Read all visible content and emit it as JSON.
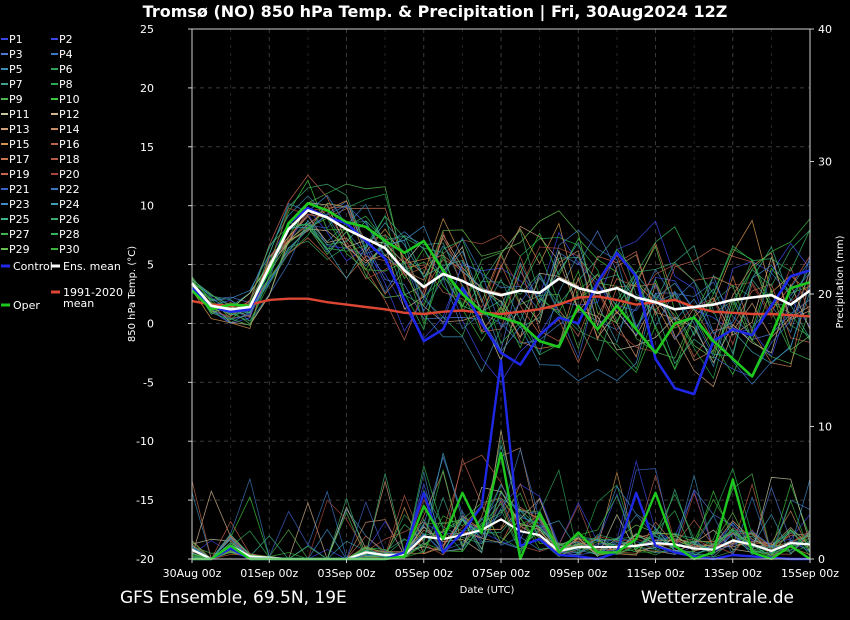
{
  "chart_data": {
    "type": "line",
    "title": "Tromsø  (NO)  850 hPa Temp. & Precipitation | Fri, 30Aug2024 12Z",
    "ylabel": "850 hPa Temp. (°C)",
    "y2label": "Precipitation (mm)",
    "xlabel": "Date (UTC)",
    "ylim": [
      -20,
      25
    ],
    "y2lim": [
      0,
      40
    ],
    "xlim": [
      0,
      16
    ],
    "x_unit": "days since 30Aug 00z",
    "x_ticks": [
      {
        "x": 0,
        "label": "30Aug 00z"
      },
      {
        "x": 2,
        "label": "01Sep 00z"
      },
      {
        "x": 4,
        "label": "03Sep 00z"
      },
      {
        "x": 6,
        "label": "05Sep 00z"
      },
      {
        "x": 8,
        "label": "07Sep 00z"
      },
      {
        "x": 10,
        "label": "09Sep 00z"
      },
      {
        "x": 12,
        "label": "11Sep 00z"
      },
      {
        "x": 14,
        "label": "13Sep 00z"
      },
      {
        "x": 16,
        "label": "15Sep 00z"
      }
    ],
    "y_ticks": [
      25,
      20,
      15,
      10,
      5,
      0,
      -5,
      -10,
      -15,
      -20
    ],
    "y2_ticks": [
      40,
      30,
      20,
      10,
      0
    ],
    "grid": true,
    "legend_position": "left",
    "legend": [
      {
        "label": "P1",
        "color": "#3c46e6"
      },
      {
        "label": "P2",
        "color": "#3c46e6"
      },
      {
        "label": "P3",
        "color": "#5078d2"
      },
      {
        "label": "P4",
        "color": "#3c78c8"
      },
      {
        "label": "P5",
        "color": "#3c8cb4"
      },
      {
        "label": "P6",
        "color": "#32a05a"
      },
      {
        "label": "P7",
        "color": "#3ca08c"
      },
      {
        "label": "P8",
        "color": "#28aa50"
      },
      {
        "label": "P9",
        "color": "#50b450"
      },
      {
        "label": "P10",
        "color": "#3cc83c"
      },
      {
        "label": "P11",
        "color": "#c8c8a0"
      },
      {
        "label": "P12",
        "color": "#d2b48c"
      },
      {
        "label": "P13",
        "color": "#d2a078"
      },
      {
        "label": "P14",
        "color": "#c88c64"
      },
      {
        "label": "P15",
        "color": "#d29650"
      },
      {
        "label": "P16",
        "color": "#be6446"
      },
      {
        "label": "P17",
        "color": "#c87850"
      },
      {
        "label": "P18",
        "color": "#b45a46"
      },
      {
        "label": "P19",
        "color": "#c86450"
      },
      {
        "label": "P20",
        "color": "#aa463c"
      },
      {
        "label": "P21",
        "color": "#3c64c8"
      },
      {
        "label": "P22",
        "color": "#3c78be"
      },
      {
        "label": "P23",
        "color": "#3c8cc8"
      },
      {
        "label": "P24",
        "color": "#3ca0b4"
      },
      {
        "label": "P25",
        "color": "#3cb48c"
      },
      {
        "label": "P26",
        "color": "#3caa6e"
      },
      {
        "label": "P27",
        "color": "#3cb450"
      },
      {
        "label": "P28",
        "color": "#32b45a"
      },
      {
        "label": "P29",
        "color": "#64be50"
      },
      {
        "label": "P30",
        "color": "#3cb43c"
      },
      {
        "label": "Control",
        "color": "#1e28e6"
      },
      {
        "label": "Ens. mean",
        "color": "#ffffff"
      },
      {
        "label": "1991-2020 mean",
        "color": "#dc4632"
      },
      {
        "label": "Oper",
        "color": "#1ec81e"
      }
    ],
    "series": [
      {
        "name": "Ens. mean",
        "axis": "temp",
        "color": "#ffffff",
        "x": [
          0,
          0.5,
          1,
          1.5,
          2,
          2.5,
          3,
          3.5,
          4,
          4.5,
          5,
          5.5,
          6,
          6.5,
          7,
          7.5,
          8,
          8.5,
          9,
          9.5,
          10,
          10.5,
          11,
          11.5,
          12,
          12.5,
          13,
          13.5,
          14,
          14.5,
          15,
          15.5,
          16
        ],
        "y": [
          3.4,
          1.5,
          1.2,
          1.4,
          4.8,
          8.0,
          9.6,
          9.0,
          8.0,
          7.2,
          6.4,
          4.5,
          3.1,
          4.2,
          3.6,
          2.8,
          2.4,
          2.8,
          2.6,
          3.8,
          3.0,
          2.6,
          3.0,
          2.2,
          1.8,
          1.2,
          1.4,
          1.6,
          2.0,
          2.2,
          2.4,
          1.6,
          2.8
        ]
      },
      {
        "name": "1991-2020 mean",
        "axis": "temp",
        "color": "#dc4632",
        "x": [
          0,
          0.5,
          1,
          1.5,
          2,
          2.5,
          3,
          3.5,
          4,
          4.5,
          5,
          5.5,
          6,
          6.5,
          7,
          7.5,
          8,
          8.5,
          9,
          9.5,
          10,
          10.5,
          11,
          11.5,
          12,
          12.5,
          13,
          13.5,
          14,
          14.5,
          15,
          15.5,
          16
        ],
        "y": [
          1.9,
          1.6,
          1.5,
          1.6,
          2.0,
          2.1,
          2.1,
          1.8,
          1.6,
          1.4,
          1.2,
          0.9,
          0.8,
          1.0,
          1.1,
          0.9,
          0.8,
          1.0,
          1.2,
          1.6,
          2.2,
          2.3,
          2.0,
          1.6,
          1.8,
          2.0,
          1.4,
          1.0,
          0.9,
          0.8,
          0.8,
          0.7,
          0.6
        ]
      },
      {
        "name": "Control",
        "axis": "temp",
        "color": "#1e28e6",
        "x": [
          0,
          0.5,
          1,
          1.5,
          2,
          2.5,
          3,
          3.5,
          4,
          4.5,
          5,
          5.5,
          6,
          6.5,
          7,
          7.5,
          8,
          8.5,
          9,
          9.5,
          10,
          10.5,
          11,
          11.5,
          12,
          12.5,
          13,
          13.5,
          14,
          14.5,
          15,
          15.5,
          16
        ],
        "y": [
          3.0,
          1.4,
          1.0,
          1.2,
          4.5,
          8.5,
          9.8,
          9.0,
          8.5,
          7.0,
          5.5,
          2.0,
          -1.5,
          -0.5,
          3.0,
          0.0,
          -2.5,
          -3.5,
          -1.0,
          0.5,
          0.0,
          3.5,
          6.0,
          4.0,
          -3.0,
          -5.5,
          -6.0,
          -1.5,
          -0.5,
          -1.0,
          1.5,
          4.0,
          4.5
        ]
      },
      {
        "name": "Oper",
        "axis": "temp",
        "color": "#1ec81e",
        "x": [
          0,
          0.5,
          1,
          1.5,
          2,
          2.5,
          3,
          3.5,
          4,
          4.5,
          5,
          5.5,
          6,
          6.5,
          7,
          7.5,
          8,
          8.5,
          9,
          9.5,
          10,
          10.5,
          11,
          11.5,
          12,
          12.5,
          13,
          13.5,
          14,
          14.5,
          15,
          15.5,
          16
        ],
        "y": [
          2.8,
          1.2,
          1.6,
          1.5,
          4.5,
          8.5,
          10.2,
          9.6,
          8.6,
          8.2,
          7.0,
          6.0,
          7.0,
          4.5,
          2.5,
          1.0,
          0.5,
          0.0,
          -1.5,
          -2.0,
          1.5,
          -0.5,
          1.5,
          -0.5,
          -2.5,
          0.0,
          0.5,
          -1.5,
          -3.0,
          -4.5,
          -1.0,
          3.0,
          3.5
        ]
      },
      {
        "name": "Ens. mean precipitation",
        "axis": "precip",
        "color": "#ffffff",
        "x": [
          0,
          0.5,
          1,
          1.5,
          2,
          2.5,
          3,
          3.5,
          4,
          4.5,
          5,
          5.5,
          6,
          6.5,
          7,
          7.5,
          8,
          8.5,
          9,
          9.5,
          10,
          10.5,
          11,
          11.5,
          12,
          12.5,
          13,
          13.5,
          14,
          14.5,
          15,
          15.5,
          16
        ],
        "y": [
          0.7,
          0.0,
          1.0,
          0.2,
          0.1,
          0.0,
          0.0,
          0.0,
          0.0,
          0.5,
          0.3,
          0.3,
          1.7,
          1.5,
          1.8,
          2.2,
          3.0,
          2.1,
          1.8,
          0.6,
          0.9,
          0.9,
          0.9,
          1.0,
          1.2,
          1.1,
          0.8,
          0.7,
          1.4,
          1.1,
          0.6,
          1.2,
          1.1
        ]
      },
      {
        "name": "Oper precipitation",
        "axis": "precip",
        "color": "#1ec81e",
        "x": [
          0,
          0.5,
          1,
          1.5,
          2,
          2.5,
          3,
          3.5,
          4,
          4.5,
          5,
          5.5,
          6,
          6.5,
          7,
          7.5,
          8,
          8.5,
          9,
          9.5,
          10,
          10.5,
          11,
          11.5,
          12,
          12.5,
          13,
          13.5,
          14,
          14.5,
          15,
          15.5,
          16
        ],
        "y": [
          0.0,
          0.0,
          1.0,
          0.0,
          0.0,
          0.0,
          0.0,
          0.0,
          0.0,
          0.0,
          0.0,
          0.2,
          4.0,
          1.5,
          5.0,
          2.0,
          8.0,
          0.0,
          3.5,
          0.5,
          2.0,
          0.5,
          0.5,
          1.5,
          5.0,
          1.0,
          0.0,
          0.5,
          6.0,
          0.5,
          0.0,
          1.0,
          0.0
        ]
      },
      {
        "name": "Control precipitation",
        "axis": "precip",
        "color": "#1e28e6",
        "x": [
          0,
          0.5,
          1,
          1.5,
          2,
          2.5,
          3,
          3.5,
          4,
          4.5,
          5,
          5.5,
          6,
          6.5,
          7,
          7.5,
          8,
          8.5,
          9,
          9.5,
          10,
          10.5,
          11,
          11.5,
          12,
          12.5,
          13,
          13.5,
          14,
          14.5,
          15,
          15.5,
          16
        ],
        "y": [
          0.0,
          0.0,
          0.8,
          0.0,
          0.0,
          0.0,
          0.0,
          0.0,
          0.0,
          0.0,
          0.0,
          0.5,
          5.0,
          0.5,
          2.0,
          4.0,
          15.0,
          1.0,
          1.5,
          0.3,
          0.2,
          0.0,
          0.5,
          5.0,
          1.0,
          0.5,
          0.2,
          0.0,
          0.3,
          0.2,
          0.1,
          0.0,
          0.0
        ]
      }
    ]
  },
  "footer": {
    "left": "GFS Ensemble, 69.5N, 19E",
    "right": "Wetterzentrale.de"
  }
}
